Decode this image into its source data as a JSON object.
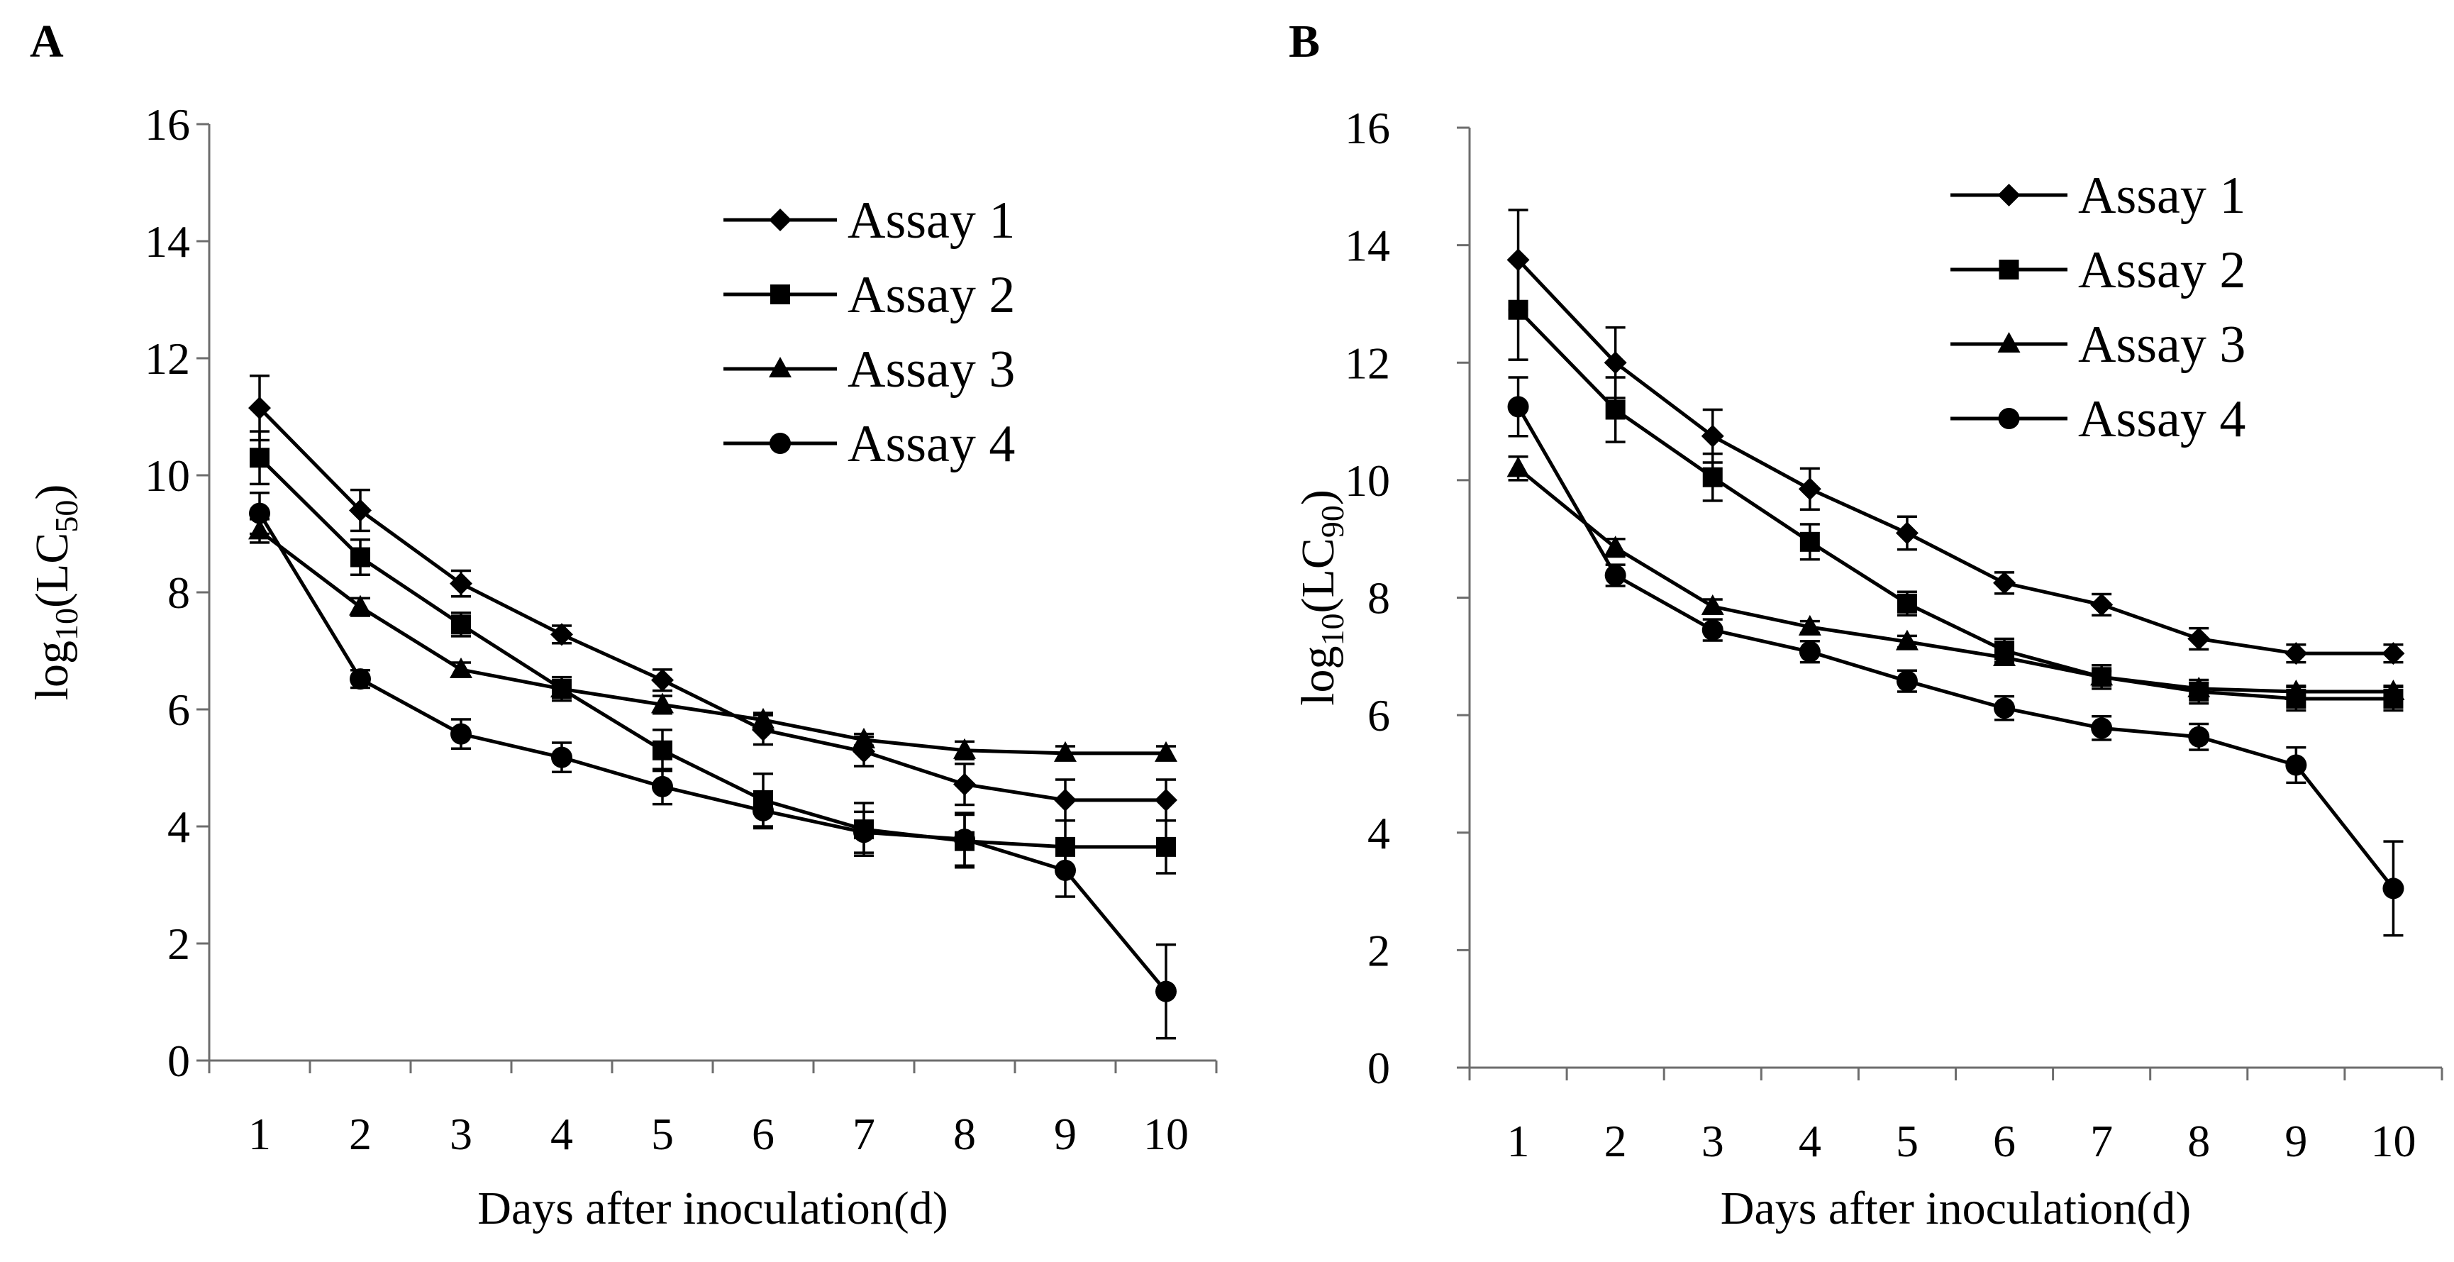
{
  "chart_data": [
    {
      "type": "line",
      "panel": "A",
      "title": "",
      "xlabel": "Days after inoculation(d)",
      "ylabel_main": "log",
      "ylabel_sub1": "10",
      "ylabel_mid": "(LC",
      "ylabel_sub2": "50",
      "ylabel_end": ")",
      "ylim": [
        0,
        16
      ],
      "yticks": [
        "0",
        "2",
        "4",
        "6",
        "8",
        "10",
        "12",
        "14",
        "16"
      ],
      "categories": [
        "1",
        "2",
        "3",
        "4",
        "5",
        "6",
        "7",
        "8",
        "9",
        "10"
      ],
      "legend_position": "top-right",
      "series": [
        {
          "name": "Assay 1",
          "marker": "diamond",
          "values": [
            11.15,
            9.4,
            8.15,
            7.28,
            6.5,
            5.65,
            5.28,
            4.72,
            4.45,
            4.45
          ],
          "errors": [
            0.55,
            0.35,
            0.22,
            0.15,
            0.18,
            0.25,
            0.25,
            0.35,
            0.35,
            0.35
          ]
        },
        {
          "name": "Assay 2",
          "marker": "square",
          "values": [
            10.3,
            8.6,
            7.45,
            6.35,
            5.3,
            4.45,
            3.95,
            3.75,
            3.65,
            3.65
          ],
          "errors": [
            0.45,
            0.3,
            0.2,
            0.2,
            0.35,
            0.45,
            0.45,
            0.45,
            0.45,
            0.45
          ]
        },
        {
          "name": "Assay 3",
          "marker": "triangle",
          "values": [
            9.05,
            7.75,
            6.68,
            6.35,
            6.08,
            5.82,
            5.48,
            5.3,
            5.25,
            5.25
          ],
          "errors": [
            0.2,
            0.15,
            0.12,
            0.15,
            0.15,
            0.12,
            0.1,
            0.15,
            0.12,
            0.12
          ]
        },
        {
          "name": "Assay 4",
          "marker": "circle",
          "values": [
            9.35,
            6.52,
            5.58,
            5.18,
            4.68,
            4.27,
            3.9,
            3.78,
            3.25,
            1.18
          ],
          "errors": [
            0.35,
            0.15,
            0.25,
            0.25,
            0.3,
            0.3,
            0.35,
            0.45,
            0.45,
            0.8
          ]
        }
      ]
    },
    {
      "type": "line",
      "panel": "B",
      "title": "",
      "xlabel": "Days after inoculation(d)",
      "ylabel_main": "log",
      "ylabel_sub1": "10",
      "ylabel_mid": "(LC",
      "ylabel_sub2": "90",
      "ylabel_end": ")",
      "ylim": [
        0,
        16
      ],
      "yticks": [
        "0",
        "2",
        "4",
        "6",
        "8",
        "10",
        "12",
        "14",
        "16"
      ],
      "categories": [
        "1",
        "2",
        "3",
        "4",
        "5",
        "6",
        "7",
        "8",
        "9",
        "10"
      ],
      "legend_position": "top-right",
      "series": [
        {
          "name": "Assay 1",
          "marker": "diamond",
          "values": [
            13.75,
            12.0,
            10.75,
            9.85,
            9.1,
            8.25,
            7.88,
            7.3,
            7.05,
            7.05
          ],
          "errors": [
            0.85,
            0.6,
            0.45,
            0.35,
            0.28,
            0.18,
            0.18,
            0.18,
            0.15,
            0.15
          ]
        },
        {
          "name": "Assay 2",
          "marker": "square",
          "values": [
            12.9,
            11.2,
            10.05,
            8.95,
            7.9,
            7.1,
            6.65,
            6.4,
            6.28,
            6.28
          ],
          "errors": [
            0.85,
            0.55,
            0.4,
            0.3,
            0.2,
            0.2,
            0.2,
            0.2,
            0.2,
            0.2
          ]
        },
        {
          "name": "Assay 3",
          "marker": "triangle",
          "values": [
            10.2,
            8.85,
            7.85,
            7.5,
            7.25,
            6.98,
            6.65,
            6.45,
            6.4,
            6.4
          ],
          "errors": [
            0.2,
            0.15,
            0.12,
            0.1,
            0.1,
            0.1,
            0.1,
            0.1,
            0.1,
            0.1
          ]
        },
        {
          "name": "Assay 4",
          "marker": "circle",
          "values": [
            11.25,
            8.38,
            7.45,
            7.08,
            6.58,
            6.12,
            5.78,
            5.63,
            5.15,
            3.05
          ],
          "errors": [
            0.5,
            0.18,
            0.18,
            0.18,
            0.18,
            0.2,
            0.2,
            0.22,
            0.3,
            0.8
          ]
        }
      ]
    }
  ]
}
